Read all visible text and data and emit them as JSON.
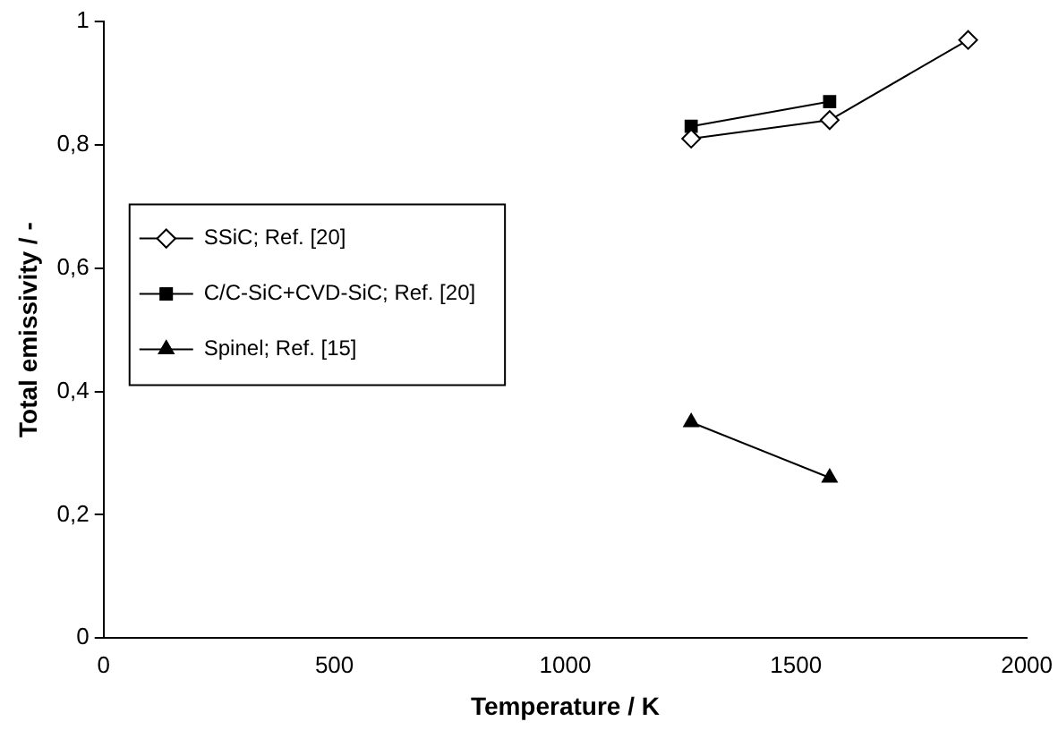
{
  "chart_data": {
    "type": "line",
    "xlabel": "Temperature / K",
    "ylabel": "Total emissivity / -",
    "xlim": [
      0,
      2000
    ],
    "xticks": [
      0,
      500,
      1000,
      1500,
      2000
    ],
    "ylim": [
      0,
      1
    ],
    "yticks": [
      0,
      {
        "value": 0.2,
        "label": "0,2"
      },
      {
        "value": 0.4,
        "label": "0,4"
      },
      {
        "value": 0.6,
        "label": "0,6"
      },
      {
        "value": 0.8,
        "label": "0,8"
      },
      1
    ],
    "grid": false,
    "legend": "left",
    "series": [
      {
        "name": "SSiC; Ref. [20]",
        "color": "#000000",
        "marker": "diamond",
        "x": [
          1273,
          1573,
          1873
        ],
        "values": [
          0.81,
          0.84,
          0.97
        ]
      },
      {
        "name": "C/C-SiC+CVD-SiC; Ref. [20]",
        "color": "#000000",
        "marker": "square",
        "x": [
          1273,
          1573
        ],
        "values": [
          0.83,
          0.87
        ]
      },
      {
        "name": "Spinel; Ref. [15]",
        "color": "#000000",
        "marker": "triangle",
        "x": [
          1273,
          1573
        ],
        "values": [
          0.35,
          0.26
        ]
      }
    ]
  }
}
